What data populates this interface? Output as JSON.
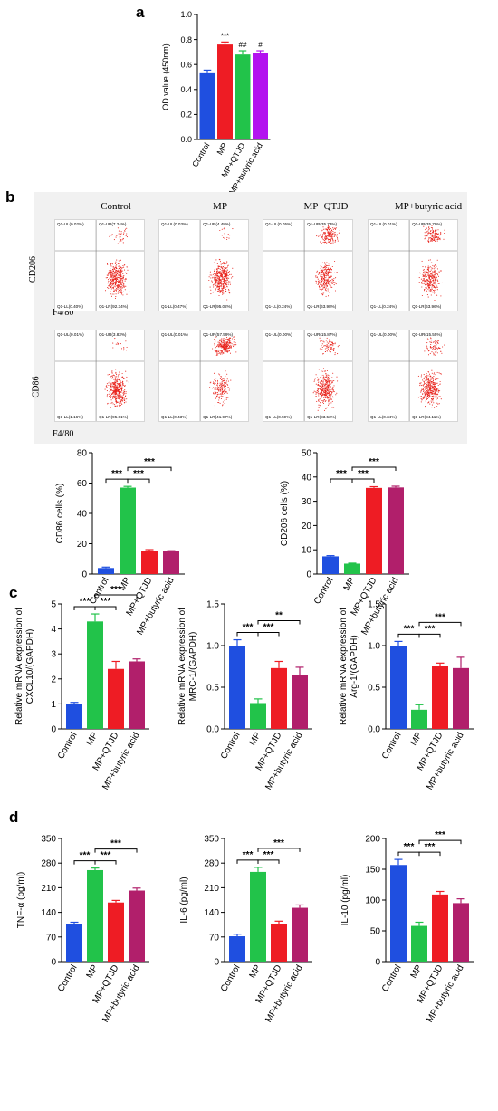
{
  "panels": {
    "a": "a",
    "b": "b",
    "c": "c",
    "d": "d"
  },
  "colors": {
    "control": "#1f4fe0",
    "mp_green": "#22c34a",
    "mp_red": "#ee1c24",
    "qtjd_green": "#22c34a",
    "butyric_purple": "#b312ef",
    "qtjd_red": "#ee1c24",
    "butyric_magenta": "#b11f6b",
    "flow_dots": "#e8231c"
  },
  "flow": {
    "titles": [
      "Control",
      "MP",
      "MP+QTJD",
      "MP+butyric acid"
    ],
    "rows": [
      {
        "ylabel": "CD206",
        "xlabel": "F4/80",
        "quadrants": [
          {
            "ul": "Q1-UL(0.02%)",
            "ur": "Q1-UR(7.24%)",
            "ll": "Q1-LL(0.40%)",
            "lr": "Q1-LR(92.34%)"
          },
          {
            "ul": "Q1-UL(0.03%)",
            "ur": "Q1-UR(4.48%)",
            "ll": "Q1-LL(0.47%)",
            "lr": "Q1-LR(95.02%)"
          },
          {
            "ul": "Q1-UL(0.05%)",
            "ur": "Q1-UR(35.73%)",
            "ll": "Q1-LL(0.24%)",
            "lr": "Q1-LR(63.98%)"
          },
          {
            "ul": "Q1-UL(0.01%)",
            "ur": "Q1-UR(35.79%)",
            "ll": "Q1-LL(0.24%)",
            "lr": "Q1-LR(63.96%)"
          }
        ]
      },
      {
        "ylabel": "CD86",
        "xlabel": "F4/80",
        "quadrants": [
          {
            "ul": "Q1-UL(0.01%)",
            "ur": "Q1-UR(3.83%)",
            "ll": "Q1-LL(1.16%)",
            "lr": "Q1-LR(95.01%)"
          },
          {
            "ul": "Q1-UL(0.01%)",
            "ur": "Q1-UR(57.59%)",
            "ll": "Q1-LL(0.43%)",
            "lr": "Q1-LR(41.97%)"
          },
          {
            "ul": "Q1-UL(0.00%)",
            "ur": "Q1-UR(15.87%)",
            "ll": "Q1-LL(0.59%)",
            "lr": "Q1-LR(83.53%)"
          },
          {
            "ul": "Q1-UL(0.00%)",
            "ur": "Q1-UR(15.55%)",
            "ll": "Q1-LL(0.34%)",
            "lr": "Q1-LR(84.11%)"
          }
        ]
      }
    ]
  },
  "chart_data": [
    {
      "id": "a",
      "type": "bar",
      "categories": [
        "Control",
        "MP",
        "MP+QTJD",
        "MP+butyric acid"
      ],
      "values": [
        0.53,
        0.76,
        0.68,
        0.69
      ],
      "errors": [
        0.025,
        0.02,
        0.03,
        0.02
      ],
      "colors": [
        "#1f4fe0",
        "#ee1c24",
        "#22c34a",
        "#b312ef"
      ],
      "sig": [
        "",
        "***",
        "##",
        "#"
      ],
      "ylabel": "OD value (450nm)",
      "ylim": [
        0,
        1.0
      ],
      "yticks": [
        "0.0",
        "0.2",
        "0.4",
        "0.6",
        "0.8",
        "1.0"
      ],
      "ytick_values": [
        0,
        0.2,
        0.4,
        0.6,
        0.8,
        1.0
      ],
      "brackets": []
    },
    {
      "id": "b_cd86",
      "type": "bar",
      "categories": [
        "Control",
        "MP",
        "MP+QTJD",
        "MP+butyric acid"
      ],
      "values": [
        4,
        57,
        15.5,
        15
      ],
      "errors": [
        0.6,
        0.8,
        0.6,
        0.4
      ],
      "colors": [
        "#1f4fe0",
        "#22c34a",
        "#ee1c24",
        "#b11f6b"
      ],
      "ylabel": "CD86 cells (%)",
      "ylim": [
        0,
        80
      ],
      "yticks": [
        "0",
        "20",
        "40",
        "60",
        "80"
      ],
      "ytick_values": [
        0,
        20,
        40,
        60,
        80
      ],
      "brackets": [
        {
          "from": 0,
          "to": 1,
          "label": "***",
          "level": 0
        },
        {
          "from": 1,
          "to": 2,
          "label": "***",
          "level": 0
        },
        {
          "from": 1,
          "to": 3,
          "label": "***",
          "level": 1
        }
      ]
    },
    {
      "id": "b_cd206",
      "type": "bar",
      "categories": [
        "Control",
        "MP",
        "MP+QTJD",
        "MP+butyric acid"
      ],
      "values": [
        7.3,
        4.3,
        35.5,
        35.7
      ],
      "errors": [
        0.3,
        0.2,
        0.5,
        0.5
      ],
      "colors": [
        "#1f4fe0",
        "#22c34a",
        "#ee1c24",
        "#b11f6b"
      ],
      "ylabel": "CD206 cells (%)",
      "ylim": [
        0,
        50
      ],
      "yticks": [
        "0",
        "10",
        "20",
        "30",
        "40",
        "50"
      ],
      "ytick_values": [
        0,
        10,
        20,
        30,
        40,
        50
      ],
      "brackets": [
        {
          "from": 0,
          "to": 1,
          "label": "***",
          "level": 0
        },
        {
          "from": 1,
          "to": 2,
          "label": "***",
          "level": 0
        },
        {
          "from": 1,
          "to": 3,
          "label": "***",
          "level": 1
        }
      ]
    },
    {
      "id": "c_cxcl10",
      "type": "bar",
      "categories": [
        "Control",
        "MP",
        "MP+QTJD",
        "MP+butyric acid"
      ],
      "values": [
        1.0,
        4.3,
        2.4,
        2.7
      ],
      "errors": [
        0.06,
        0.3,
        0.3,
        0.1
      ],
      "colors": [
        "#1f4fe0",
        "#22c34a",
        "#ee1c24",
        "#b11f6b"
      ],
      "ylabel": "Relative mRNA expression of CXCL10/(GAPDH)",
      "ylabel_lines": [
        "Relative mRNA expression of",
        "CXCL10/(GAPDH)"
      ],
      "ylim": [
        0,
        5
      ],
      "yticks": [
        "0",
        "1",
        "2",
        "3",
        "4",
        "5"
      ],
      "ytick_values": [
        0,
        1,
        2,
        3,
        4,
        5
      ],
      "brackets": [
        {
          "from": 0,
          "to": 1,
          "label": "***",
          "level": 0
        },
        {
          "from": 1,
          "to": 2,
          "label": "***",
          "level": 0
        },
        {
          "from": 1,
          "to": 3,
          "label": "***",
          "level": 1
        }
      ]
    },
    {
      "id": "c_mrc1",
      "type": "bar",
      "categories": [
        "Control",
        "MP",
        "MP+QTJD",
        "MP+butyric acid"
      ],
      "values": [
        1.0,
        0.31,
        0.73,
        0.65
      ],
      "errors": [
        0.07,
        0.05,
        0.08,
        0.09
      ],
      "colors": [
        "#1f4fe0",
        "#22c34a",
        "#ee1c24",
        "#b11f6b"
      ],
      "ylabel": "Relative mRNA expression of MRC-1/(GAPDH)",
      "ylabel_lines": [
        "Relative mRNA expression of",
        "MRC-1/(GAPDH)"
      ],
      "ylim": [
        0,
        1.5
      ],
      "yticks": [
        "0.0",
        "0.5",
        "1.0",
        "1.5"
      ],
      "ytick_values": [
        0,
        0.5,
        1.0,
        1.5
      ],
      "brackets": [
        {
          "from": 0,
          "to": 1,
          "label": "***",
          "level": 0
        },
        {
          "from": 1,
          "to": 2,
          "label": "***",
          "level": 0
        },
        {
          "from": 1,
          "to": 3,
          "label": "**",
          "level": 1
        }
      ]
    },
    {
      "id": "c_arg1",
      "type": "bar",
      "categories": [
        "Control",
        "MP",
        "MP+QTJD",
        "MP+butyric acid"
      ],
      "values": [
        1.0,
        0.23,
        0.75,
        0.73
      ],
      "errors": [
        0.05,
        0.06,
        0.04,
        0.13
      ],
      "colors": [
        "#1f4fe0",
        "#22c34a",
        "#ee1c24",
        "#b11f6b"
      ],
      "ylabel": "Relative mRNA expression of Arg-1/(GAPDH)",
      "ylabel_lines": [
        "Relative mRNA expression of",
        "Arg-1/(GAPDH)"
      ],
      "ylim": [
        0,
        1.5
      ],
      "yticks": [
        "0.0",
        "0.5",
        "1.0",
        "1.5"
      ],
      "ytick_values": [
        0,
        0.5,
        1.0,
        1.5
      ],
      "brackets": [
        {
          "from": 0,
          "to": 1,
          "label": "***",
          "level": 0
        },
        {
          "from": 1,
          "to": 2,
          "label": "***",
          "level": 0
        },
        {
          "from": 1,
          "to": 3,
          "label": "***",
          "level": 1
        }
      ]
    },
    {
      "id": "d_tnf",
      "type": "bar",
      "categories": [
        "Control",
        "MP",
        "MP+QTJD",
        "MP+butyric acid"
      ],
      "values": [
        107,
        260,
        168,
        202
      ],
      "errors": [
        5,
        6,
        6,
        7
      ],
      "colors": [
        "#1f4fe0",
        "#22c34a",
        "#ee1c24",
        "#b11f6b"
      ],
      "ylabel": "TNF-α (pg/ml)",
      "ylim": [
        0,
        350
      ],
      "yticks": [
        "0",
        "70",
        "140",
        "210",
        "280",
        "350"
      ],
      "ytick_values": [
        0,
        70,
        140,
        210,
        280,
        350
      ],
      "brackets": [
        {
          "from": 0,
          "to": 1,
          "label": "***",
          "level": 0
        },
        {
          "from": 1,
          "to": 2,
          "label": "***",
          "level": 0
        },
        {
          "from": 1,
          "to": 3,
          "label": "***",
          "level": 1
        }
      ]
    },
    {
      "id": "d_il6",
      "type": "bar",
      "categories": [
        "Control",
        "MP",
        "MP+QTJD",
        "MP+butyric acid"
      ],
      "values": [
        72,
        255,
        108,
        153
      ],
      "errors": [
        6,
        13,
        7,
        8
      ],
      "colors": [
        "#1f4fe0",
        "#22c34a",
        "#ee1c24",
        "#b11f6b"
      ],
      "ylabel": "IL-6 (pg/ml)",
      "ylim": [
        0,
        350
      ],
      "yticks": [
        "0",
        "70",
        "140",
        "210",
        "280",
        "350"
      ],
      "ytick_values": [
        0,
        70,
        140,
        210,
        280,
        350
      ],
      "brackets": [
        {
          "from": 0,
          "to": 1,
          "label": "***",
          "level": 0
        },
        {
          "from": 1,
          "to": 2,
          "label": "***",
          "level": 0
        },
        {
          "from": 1,
          "to": 3,
          "label": "***",
          "level": 1
        }
      ]
    },
    {
      "id": "d_il10",
      "type": "bar",
      "categories": [
        "Control",
        "MP",
        "MP+QTJD",
        "MP+butyric acid"
      ],
      "values": [
        157,
        58,
        109,
        95
      ],
      "errors": [
        9,
        6,
        5,
        7
      ],
      "colors": [
        "#1f4fe0",
        "#22c34a",
        "#ee1c24",
        "#b11f6b"
      ],
      "ylabel": "IL-10 (pg/ml)",
      "ylim": [
        0,
        200
      ],
      "yticks": [
        "0",
        "50",
        "100",
        "150",
        "200"
      ],
      "ytick_values": [
        0,
        50,
        100,
        150,
        200
      ],
      "brackets": [
        {
          "from": 0,
          "to": 1,
          "label": "***",
          "level": 0
        },
        {
          "from": 1,
          "to": 2,
          "label": "***",
          "level": 0
        },
        {
          "from": 1,
          "to": 3,
          "label": "***",
          "level": 1
        }
      ]
    }
  ]
}
